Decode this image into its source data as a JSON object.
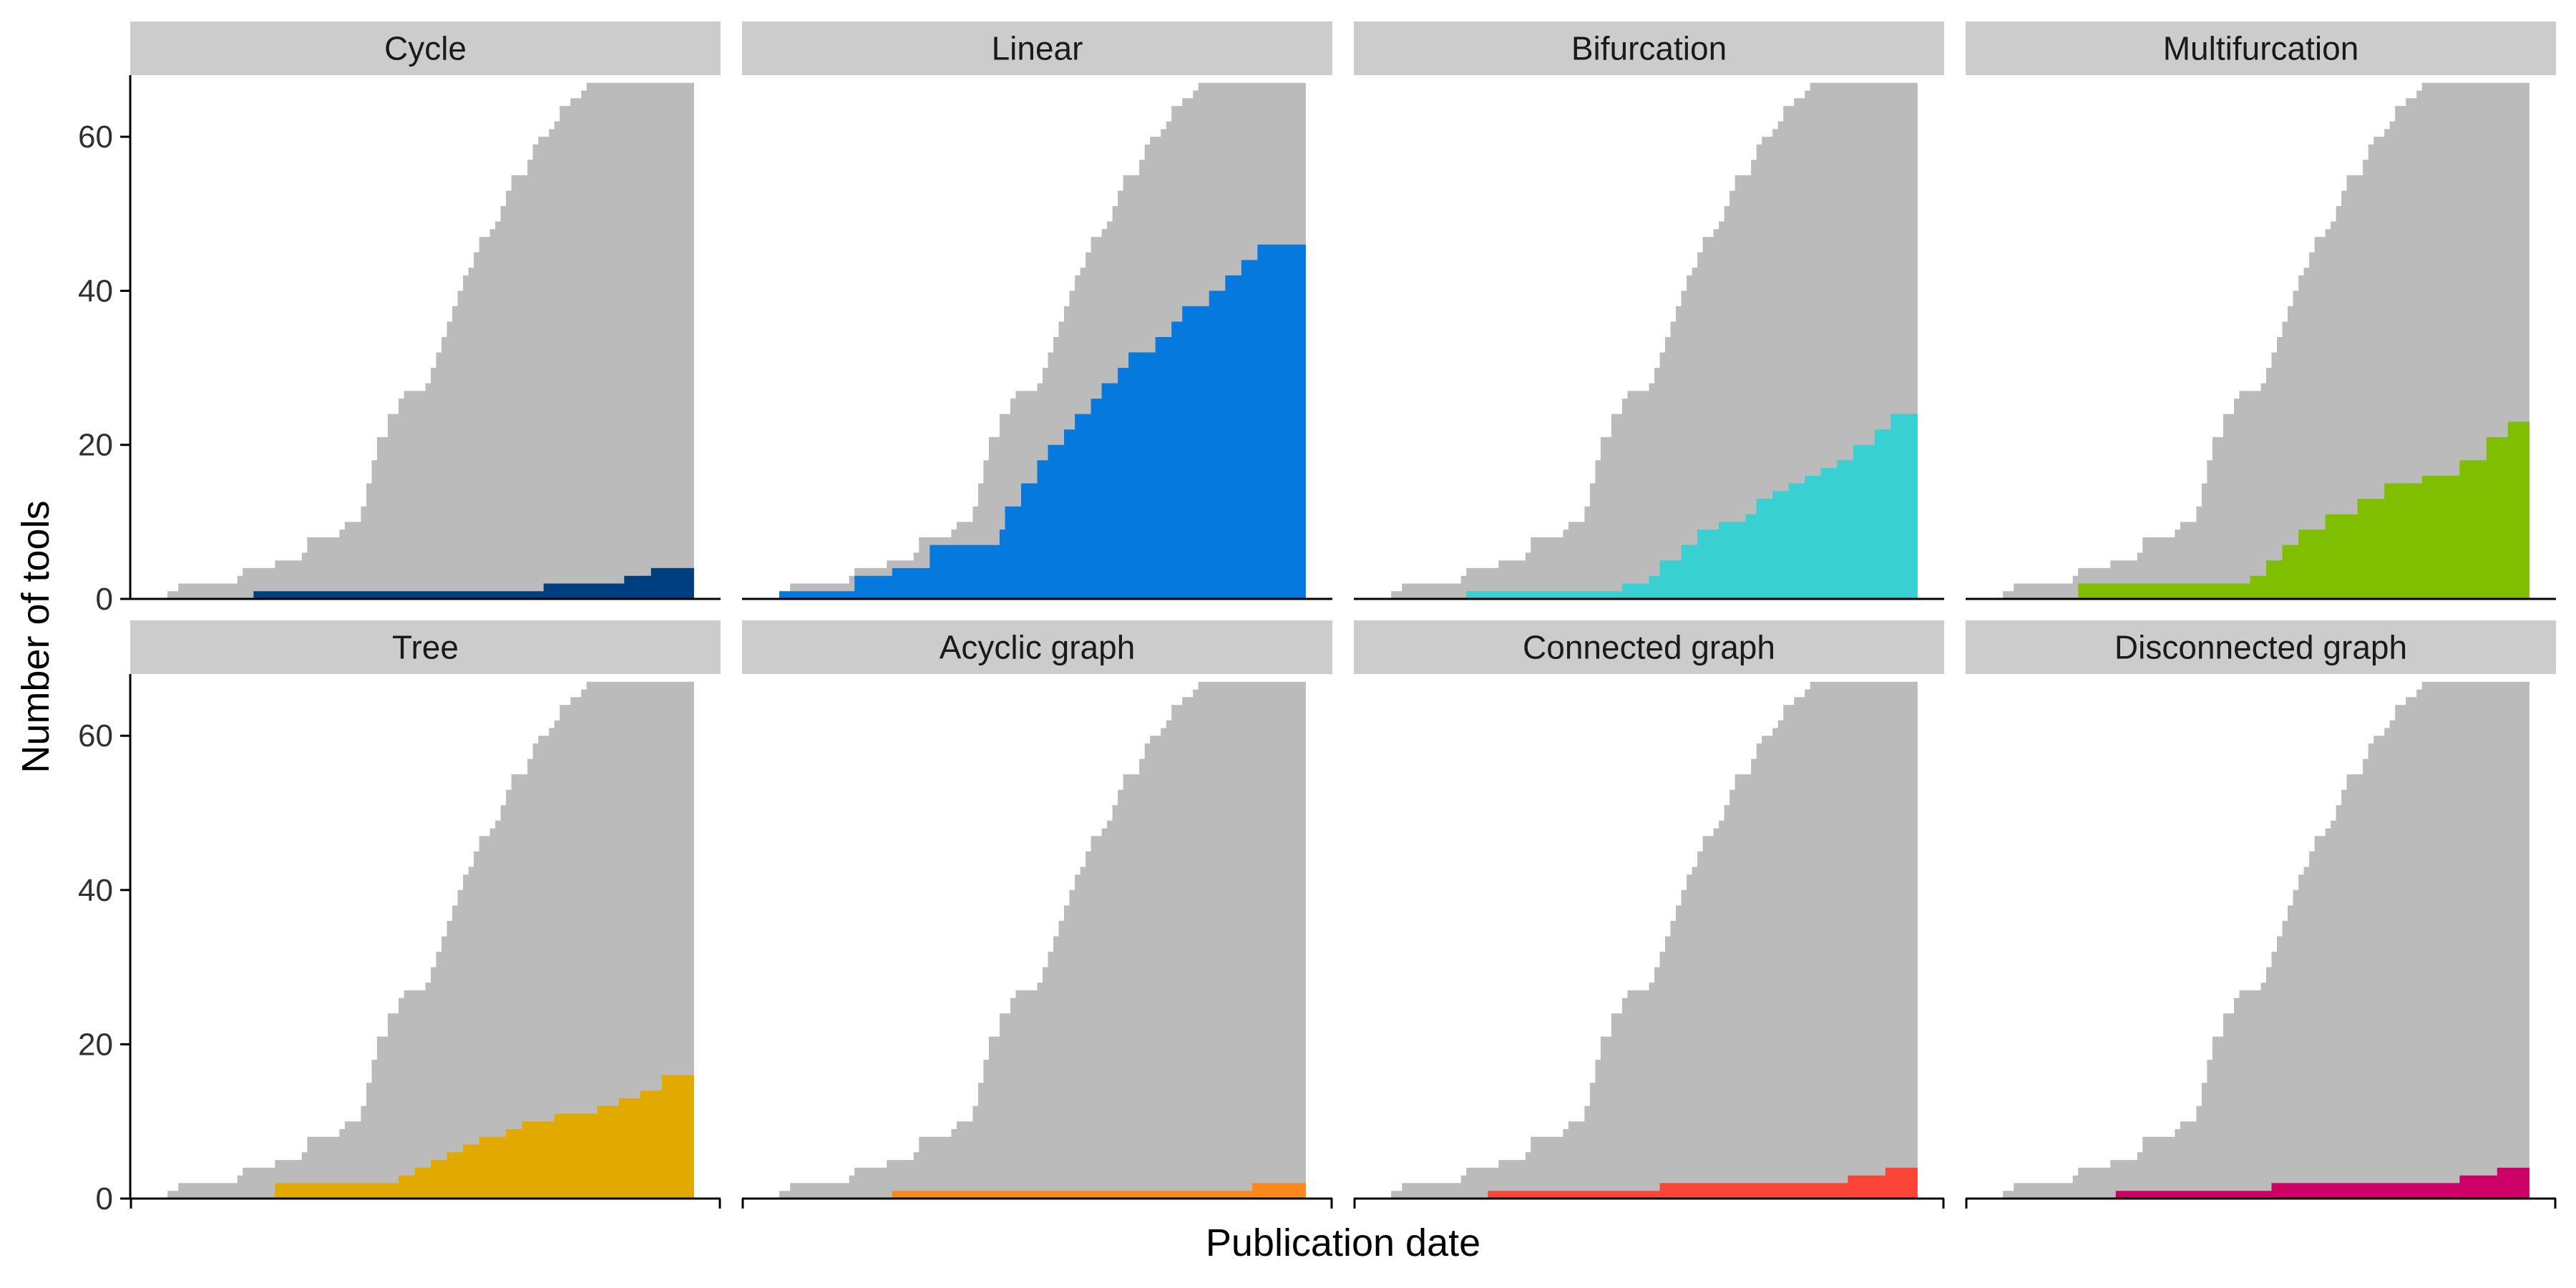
{
  "chart_data": {
    "type": "area",
    "xlabel": "Publication date",
    "ylabel": "Number of tools",
    "ylim": [
      0,
      68
    ],
    "yticks": [
      0,
      20,
      40,
      60
    ],
    "grid": false,
    "legend": "none",
    "background_color": "#BBBBBB",
    "total": {
      "x": [
        0.02,
        0.04,
        0.05,
        0.06,
        0.07,
        0.08,
        0.09,
        0.1,
        0.11,
        0.12,
        0.13,
        0.14,
        0.15,
        0.16,
        0.17,
        0.18,
        0.19,
        0.2,
        0.21,
        0.22,
        0.23,
        0.24,
        0.25,
        0.26,
        0.27,
        0.28,
        0.29,
        0.3,
        0.31,
        0.32,
        0.33,
        0.34,
        0.35,
        0.36,
        0.37,
        0.38,
        0.39,
        0.4,
        0.41,
        0.42,
        0.43,
        0.44,
        0.45,
        0.46,
        0.47,
        0.48,
        0.49,
        0.5,
        0.51,
        0.52,
        0.53,
        0.54,
        0.55,
        0.56,
        0.57,
        0.58,
        0.59,
        0.6,
        0.61,
        0.62,
        0.63,
        0.64,
        0.65,
        0.66,
        0.67,
        0.68,
        0.69,
        0.7,
        0.71,
        0.72,
        0.73,
        0.74,
        0.75,
        0.76,
        0.77,
        0.78,
        0.79,
        0.8,
        0.81,
        0.82,
        0.83,
        0.84,
        0.85,
        0.86,
        0.87,
        0.88,
        0.89,
        0.9,
        0.91,
        0.92,
        0.93,
        0.94,
        0.95,
        0.96,
        0.97,
        1.0
      ],
      "y": [
        1,
        2,
        2,
        2,
        2,
        2,
        2,
        2,
        2,
        2,
        2,
        2,
        3,
        4,
        4,
        4,
        4,
        4,
        4,
        5,
        5,
        5,
        5,
        5,
        6,
        8,
        8,
        8,
        8,
        8,
        8,
        9,
        10,
        10,
        10,
        12,
        15,
        18,
        21,
        21,
        24,
        24,
        26,
        27,
        27,
        27,
        27,
        28,
        30,
        32,
        34,
        36,
        38,
        40,
        42,
        43,
        45,
        47,
        47,
        48,
        49,
        51,
        53,
        55,
        55,
        55,
        57,
        59,
        60,
        60,
        61,
        62,
        64,
        64,
        65,
        65,
        66,
        67,
        67,
        67,
        67,
        67,
        67,
        67,
        67,
        67,
        67,
        67,
        67,
        67,
        67,
        67,
        67,
        67,
        67,
        67
      ]
    },
    "series": [
      {
        "name": "Cycle",
        "color": "#003F7F",
        "x": [
          0.18,
          0.72,
          0.87,
          0.92,
          1.0
        ],
        "y": [
          1,
          2,
          3,
          4,
          4
        ]
      },
      {
        "name": "Linear",
        "color": "#0579DE",
        "x": [
          0.02,
          0.16,
          0.23,
          0.3,
          0.43,
          0.44,
          0.47,
          0.5,
          0.52,
          0.55,
          0.57,
          0.6,
          0.62,
          0.65,
          0.67,
          0.72,
          0.75,
          0.77,
          0.82,
          0.85,
          0.88,
          0.91,
          1.0
        ],
        "y": [
          1,
          3,
          4,
          7,
          9,
          12,
          15,
          18,
          20,
          22,
          24,
          26,
          28,
          30,
          32,
          34,
          36,
          38,
          40,
          42,
          44,
          46,
          46
        ]
      },
      {
        "name": "Bifurcation",
        "color": "#38D0D0",
        "x": [
          0.16,
          0.45,
          0.5,
          0.52,
          0.56,
          0.59,
          0.63,
          0.68,
          0.7,
          0.73,
          0.76,
          0.79,
          0.82,
          0.85,
          0.88,
          0.92,
          0.95,
          1.0
        ],
        "y": [
          1,
          2,
          3,
          5,
          7,
          9,
          10,
          11,
          13,
          14,
          15,
          16,
          17,
          18,
          20,
          22,
          24,
          25
        ]
      },
      {
        "name": "Multifurcation",
        "color": "#80BE00",
        "x": [
          0.16,
          0.48,
          0.51,
          0.54,
          0.57,
          0.62,
          0.68,
          0.73,
          0.8,
          0.87,
          0.92,
          0.96,
          1.0
        ],
        "y": [
          2,
          3,
          5,
          7,
          9,
          11,
          13,
          15,
          16,
          18,
          21,
          23,
          23
        ]
      },
      {
        "name": "Tree",
        "color": "#E2AA00",
        "x": [
          0.22,
          0.45,
          0.48,
          0.51,
          0.54,
          0.57,
          0.6,
          0.65,
          0.68,
          0.71,
          0.74,
          0.77,
          0.82,
          0.86,
          0.9,
          0.94,
          1.0
        ],
        "y": [
          2,
          3,
          4,
          5,
          6,
          7,
          8,
          9,
          10,
          10,
          11,
          11,
          12,
          13,
          14,
          16,
          18
        ]
      },
      {
        "name": "Acyclic graph",
        "color": "#FA891D",
        "x": [
          0.23,
          0.9,
          1.0
        ],
        "y": [
          1,
          2,
          2
        ]
      },
      {
        "name": "Connected graph",
        "color": "#FC4537",
        "x": [
          0.2,
          0.52,
          0.87,
          0.94,
          1.0
        ],
        "y": [
          1,
          2,
          3,
          4,
          4
        ]
      },
      {
        "name": "Disconnected graph",
        "color": "#CC0066",
        "x": [
          0.23,
          0.52,
          0.87,
          0.94,
          1.0
        ],
        "y": [
          1,
          2,
          3,
          4,
          4
        ]
      }
    ]
  }
}
